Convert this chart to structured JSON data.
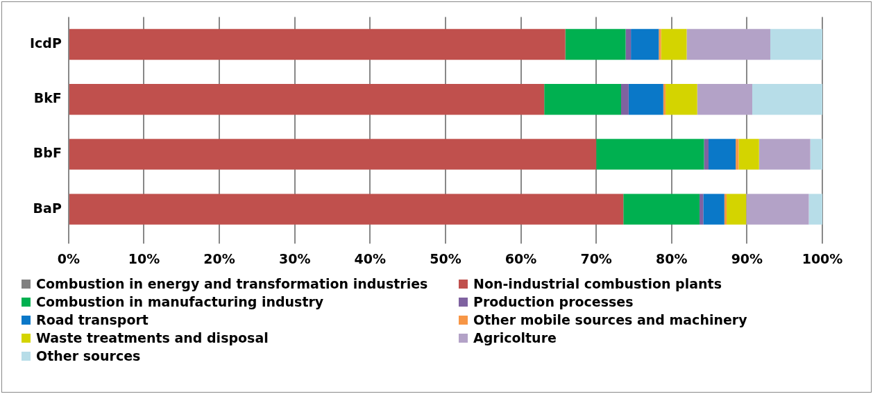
{
  "chart_data": {
    "type": "bar",
    "orientation": "horizontal",
    "stacked": true,
    "categories": [
      "IcdP",
      "BkF",
      "BbF",
      "BaP"
    ],
    "series": [
      {
        "name": "Combustion in energy and transformation industries",
        "color": "#808080",
        "values": [
          0,
          0,
          0,
          0
        ]
      },
      {
        "name": "Non-industrial combustion plants",
        "color": "#c0504d",
        "values": [
          65.9,
          63.1,
          70.0,
          73.6
        ]
      },
      {
        "name": "Combustion in manufacturing industry",
        "color": "#00b050",
        "values": [
          8.0,
          10.2,
          14.3,
          10.1
        ]
      },
      {
        "name": "Production processes",
        "color": "#7f62a0",
        "values": [
          0.7,
          1.0,
          0.6,
          0.5
        ]
      },
      {
        "name": "Road transport",
        "color": "#0a78c8",
        "values": [
          3.7,
          4.6,
          3.6,
          2.8
        ]
      },
      {
        "name": "Other mobile sources and machinery",
        "color": "#f79646",
        "values": [
          0.3,
          0.3,
          0.4,
          0.3
        ]
      },
      {
        "name": "Waste treatments and disposal",
        "color": "#d4d400",
        "values": [
          3.4,
          4.2,
          2.7,
          2.6
        ]
      },
      {
        "name": "Agricolture",
        "color": "#b3a2c7",
        "values": [
          11.1,
          7.3,
          6.8,
          8.3
        ]
      },
      {
        "name": "Other sources",
        "color": "#b7dde8",
        "values": [
          6.9,
          9.3,
          1.6,
          1.8
        ]
      }
    ],
    "xlim": [
      0,
      100
    ],
    "xticks": [
      {
        "value": 0,
        "label": "0%"
      },
      {
        "value": 10,
        "label": "10%"
      },
      {
        "value": 20,
        "label": "20%"
      },
      {
        "value": 30,
        "label": "30%"
      },
      {
        "value": 40,
        "label": "40%"
      },
      {
        "value": 50,
        "label": "50%"
      },
      {
        "value": 60,
        "label": "60%"
      },
      {
        "value": 70,
        "label": "70%"
      },
      {
        "value": 80,
        "label": "80%"
      },
      {
        "value": 90,
        "label": "90%"
      },
      {
        "value": 100,
        "label": "100%"
      }
    ],
    "grid": "x",
    "legend": "bottom"
  }
}
